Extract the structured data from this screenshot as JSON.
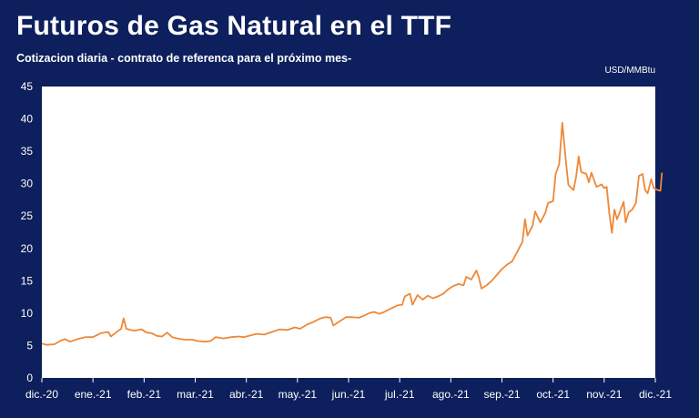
{
  "title": "Futuros de Gas Natural en el TTF",
  "subtitle": "Cotizacion diaria - contrato de referenca para el próximo mes-",
  "unit": "USD/MMBtu",
  "colors": {
    "background": "#0d1f5c",
    "plot_bg": "#ffffff",
    "line": "#ee8838",
    "text": "#ffffff"
  },
  "chart_data": {
    "type": "line",
    "title": "Futuros de Gas Natural en el TTF",
    "subtitle": "Cotizacion diaria - contrato de referenca para el próximo mes-",
    "ylabel": "USD/MMBtu",
    "xlabel": "",
    "ylim": [
      0,
      45
    ],
    "yticks": [
      0,
      5,
      10,
      15,
      20,
      25,
      30,
      35,
      40,
      45
    ],
    "grid": false,
    "legend": "none",
    "xticks": [
      "dic.-20",
      "ene.-21",
      "feb.-21",
      "mar.-21",
      "abr.-21",
      "may.-21",
      "jun.-21",
      "jul.-21",
      "ago.-21",
      "sep.-21",
      "oct.-21",
      "nov.-21",
      "dic.-21"
    ],
    "x_unit": "months since dic.-20",
    "series": [
      {
        "name": "TTF",
        "points": [
          [
            0.0,
            5.3
          ],
          [
            0.1,
            5.1
          ],
          [
            0.25,
            5.2
          ],
          [
            0.35,
            5.7
          ],
          [
            0.45,
            6.0
          ],
          [
            0.55,
            5.6
          ],
          [
            0.7,
            6.0
          ],
          [
            0.85,
            6.3
          ],
          [
            1.0,
            6.3
          ],
          [
            1.15,
            6.9
          ],
          [
            1.3,
            7.1
          ],
          [
            1.35,
            6.4
          ],
          [
            1.45,
            7.0
          ],
          [
            1.55,
            7.6
          ],
          [
            1.6,
            9.2
          ],
          [
            1.65,
            7.6
          ],
          [
            1.8,
            7.3
          ],
          [
            1.95,
            7.5
          ],
          [
            2.05,
            7.0
          ],
          [
            2.15,
            6.9
          ],
          [
            2.25,
            6.5
          ],
          [
            2.35,
            6.4
          ],
          [
            2.45,
            7.0
          ],
          [
            2.55,
            6.3
          ],
          [
            2.65,
            6.1
          ],
          [
            2.8,
            5.9
          ],
          [
            2.95,
            5.9
          ],
          [
            3.05,
            5.7
          ],
          [
            3.2,
            5.6
          ],
          [
            3.3,
            5.7
          ],
          [
            3.4,
            6.3
          ],
          [
            3.55,
            6.1
          ],
          [
            3.7,
            6.3
          ],
          [
            3.85,
            6.4
          ],
          [
            3.95,
            6.3
          ],
          [
            4.05,
            6.5
          ],
          [
            4.2,
            6.8
          ],
          [
            4.35,
            6.7
          ],
          [
            4.5,
            7.1
          ],
          [
            4.65,
            7.5
          ],
          [
            4.8,
            7.4
          ],
          [
            4.95,
            7.8
          ],
          [
            5.05,
            7.6
          ],
          [
            5.2,
            8.3
          ],
          [
            5.3,
            8.6
          ],
          [
            5.45,
            9.2
          ],
          [
            5.55,
            9.4
          ],
          [
            5.65,
            9.3
          ],
          [
            5.7,
            8.1
          ],
          [
            5.8,
            8.6
          ],
          [
            5.95,
            9.4
          ],
          [
            6.05,
            9.4
          ],
          [
            6.2,
            9.3
          ],
          [
            6.3,
            9.6
          ],
          [
            6.4,
            10.0
          ],
          [
            6.5,
            10.2
          ],
          [
            6.6,
            9.9
          ],
          [
            6.7,
            10.2
          ],
          [
            6.8,
            10.6
          ],
          [
            6.95,
            11.2
          ],
          [
            7.05,
            11.3
          ],
          [
            7.1,
            12.6
          ],
          [
            7.2,
            13.0
          ],
          [
            7.25,
            11.3
          ],
          [
            7.35,
            12.8
          ],
          [
            7.45,
            12.1
          ],
          [
            7.55,
            12.7
          ],
          [
            7.65,
            12.3
          ],
          [
            7.75,
            12.6
          ],
          [
            7.85,
            13.0
          ],
          [
            7.95,
            13.7
          ],
          [
            8.05,
            14.2
          ],
          [
            8.15,
            14.5
          ],
          [
            8.25,
            14.3
          ],
          [
            8.3,
            15.6
          ],
          [
            8.4,
            15.2
          ],
          [
            8.5,
            16.6
          ],
          [
            8.55,
            15.5
          ],
          [
            8.6,
            13.8
          ],
          [
            8.7,
            14.3
          ],
          [
            8.8,
            15.0
          ],
          [
            8.9,
            15.9
          ],
          [
            9.0,
            16.8
          ],
          [
            9.1,
            17.5
          ],
          [
            9.2,
            18.0
          ],
          [
            9.3,
            19.5
          ],
          [
            9.4,
            21.0
          ],
          [
            9.45,
            24.5
          ],
          [
            9.5,
            22.0
          ],
          [
            9.6,
            23.5
          ],
          [
            9.65,
            25.7
          ],
          [
            9.75,
            24.0
          ],
          [
            9.85,
            25.5
          ],
          [
            9.9,
            27.0
          ],
          [
            10.0,
            27.3
          ],
          [
            10.05,
            31.5
          ],
          [
            10.12,
            33.0
          ],
          [
            10.18,
            39.4
          ],
          [
            10.25,
            33.5
          ],
          [
            10.3,
            29.8
          ],
          [
            10.4,
            29.0
          ],
          [
            10.45,
            31.0
          ],
          [
            10.5,
            34.2
          ],
          [
            10.55,
            31.8
          ],
          [
            10.65,
            31.5
          ],
          [
            10.7,
            30.2
          ],
          [
            10.75,
            31.7
          ],
          [
            10.85,
            29.5
          ],
          [
            10.95,
            29.9
          ],
          [
            11.0,
            29.3
          ],
          [
            11.05,
            29.5
          ],
          [
            11.1,
            25.5
          ],
          [
            11.15,
            22.4
          ],
          [
            11.2,
            26.0
          ],
          [
            11.25,
            24.5
          ],
          [
            11.3,
            25.5
          ],
          [
            11.38,
            27.2
          ],
          [
            11.42,
            24.0
          ],
          [
            11.48,
            25.6
          ],
          [
            11.55,
            26.0
          ],
          [
            11.62,
            27.0
          ],
          [
            11.68,
            31.2
          ],
          [
            11.75,
            31.5
          ],
          [
            11.8,
            29.0
          ],
          [
            11.85,
            28.5
          ],
          [
            11.92,
            30.7
          ],
          [
            11.97,
            29.3
          ],
          [
            12.05,
            29.0
          ],
          [
            12.1,
            28.9
          ],
          [
            12.13,
            31.7
          ]
        ]
      }
    ]
  }
}
